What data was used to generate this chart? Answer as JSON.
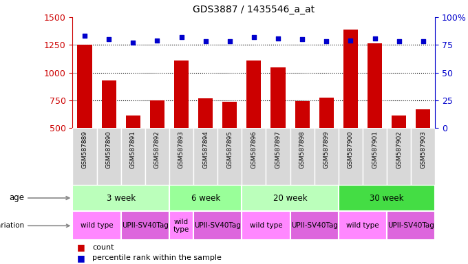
{
  "title": "GDS3887 / 1435546_a_at",
  "samples": [
    "GSM587889",
    "GSM587890",
    "GSM587891",
    "GSM587892",
    "GSM587893",
    "GSM587894",
    "GSM587895",
    "GSM587896",
    "GSM587897",
    "GSM587898",
    "GSM587899",
    "GSM587900",
    "GSM587901",
    "GSM587902",
    "GSM587903"
  ],
  "counts": [
    1250,
    930,
    610,
    750,
    1110,
    770,
    735,
    1110,
    1050,
    745,
    775,
    1390,
    1265,
    615,
    670
  ],
  "percentiles": [
    83,
    80,
    77,
    79,
    82,
    78,
    78,
    82,
    81,
    80,
    78,
    79,
    81,
    78,
    78
  ],
  "ylim_left": [
    500,
    1500
  ],
  "ylim_right": [
    0,
    100
  ],
  "yticks_left": [
    500,
    750,
    1000,
    1250,
    1500
  ],
  "yticks_right": [
    0,
    25,
    50,
    75,
    100
  ],
  "bar_color": "#cc0000",
  "dot_color": "#0000cc",
  "age_groups": [
    {
      "label": "3 week",
      "start": 0,
      "end": 4,
      "color": "#bbffbb"
    },
    {
      "label": "6 week",
      "start": 4,
      "end": 7,
      "color": "#99ff99"
    },
    {
      "label": "20 week",
      "start": 7,
      "end": 11,
      "color": "#bbffbb"
    },
    {
      "label": "30 week",
      "start": 11,
      "end": 15,
      "color": "#44dd44"
    }
  ],
  "genotype_groups": [
    {
      "label": "wild type",
      "start": 0,
      "end": 2,
      "color": "#ff88ff"
    },
    {
      "label": "UPII-SV40Tag",
      "start": 2,
      "end": 4,
      "color": "#dd66dd"
    },
    {
      "label": "wild\ntype",
      "start": 4,
      "end": 5,
      "color": "#ff88ff"
    },
    {
      "label": "UPII-SV40Tag",
      "start": 5,
      "end": 7,
      "color": "#dd66dd"
    },
    {
      "label": "wild type",
      "start": 7,
      "end": 9,
      "color": "#ff88ff"
    },
    {
      "label": "UPII-SV40Tag",
      "start": 9,
      "end": 11,
      "color": "#dd66dd"
    },
    {
      "label": "wild type",
      "start": 11,
      "end": 13,
      "color": "#ff88ff"
    },
    {
      "label": "UPII-SV40Tag",
      "start": 13,
      "end": 15,
      "color": "#dd66dd"
    }
  ],
  "sample_bg_color": "#d8d8d8",
  "sample_border_color": "#ffffff",
  "legend_count_color": "#cc0000",
  "legend_pct_color": "#0000cc"
}
